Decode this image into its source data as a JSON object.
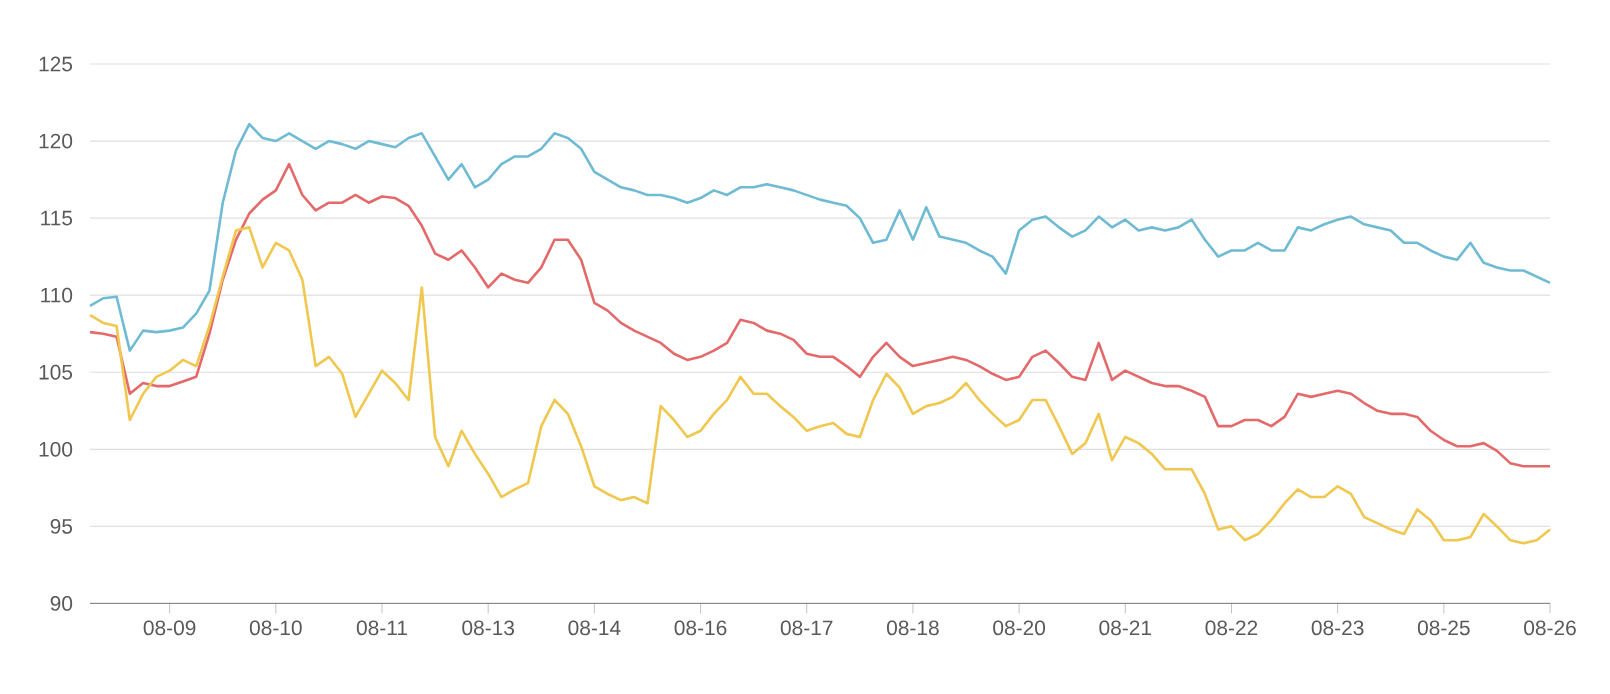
{
  "chart_data": {
    "type": "line",
    "categories": [
      null,
      null,
      null,
      null,
      null,
      null,
      "08-09",
      null,
      null,
      null,
      null,
      null,
      null,
      null,
      "08-10",
      null,
      null,
      null,
      null,
      null,
      null,
      null,
      "08-11",
      null,
      null,
      null,
      null,
      null,
      null,
      null,
      "08-13",
      null,
      null,
      null,
      null,
      null,
      null,
      null,
      "08-14",
      null,
      null,
      null,
      null,
      null,
      null,
      null,
      "08-16",
      null,
      null,
      null,
      null,
      null,
      null,
      null,
      "08-17",
      null,
      null,
      null,
      null,
      null,
      null,
      null,
      "08-18",
      null,
      null,
      null,
      null,
      null,
      null,
      null,
      "08-20",
      null,
      null,
      null,
      null,
      null,
      null,
      null,
      "08-21",
      null,
      null,
      null,
      null,
      null,
      null,
      null,
      "08-22",
      null,
      null,
      null,
      null,
      null,
      null,
      null,
      "08-23",
      null,
      null,
      null,
      null,
      null,
      null,
      null,
      "08-25",
      null,
      null,
      null,
      null,
      null,
      null,
      null,
      "08-26"
    ],
    "series": [
      {
        "color": "#6fbbd3",
        "values": [
          109.3,
          109.8,
          109.9,
          106.4,
          107.7,
          107.6,
          107.7,
          107.9,
          108.8,
          110.3,
          116,
          119.4,
          121.1,
          120.2,
          120,
          120.5,
          120,
          119.5,
          120,
          119.8,
          119.5,
          120,
          119.8,
          119.6,
          120.2,
          120.5,
          119,
          117.5,
          118.5,
          117,
          117.5,
          118.5,
          119,
          119,
          119.5,
          120.5,
          120.2,
          119.5,
          118,
          117.5,
          117,
          116.8,
          116.5,
          116.5,
          116.3,
          116,
          116.3,
          116.8,
          116.5,
          117,
          117,
          117.2,
          117,
          116.8,
          116.5,
          116.2,
          116,
          115.8,
          115,
          113.4,
          113.6,
          115.5,
          113.6,
          115.7,
          113.8,
          113.6,
          113.4,
          112.9,
          112.5,
          111.4,
          114.2,
          114.9,
          115.1,
          114.4,
          113.8,
          114.2,
          115.1,
          114.4,
          114.9,
          114.2,
          114.4,
          114.2,
          114.4,
          114.9,
          113.6,
          112.5,
          112.9,
          112.9,
          113.4,
          112.9,
          112.9,
          114.4,
          114.2,
          114.6,
          114.9,
          115.1,
          114.6,
          114.4,
          114.2,
          113.4,
          113.4,
          112.9,
          112.5,
          112.3,
          113.4,
          112.1,
          111.8,
          111.6,
          111.6,
          111.2,
          110.8
        ]
      },
      {
        "color": "#e4696a",
        "values": [
          107.6,
          107.5,
          107.3,
          103.6,
          104.3,
          104.1,
          104.1,
          104.4,
          104.7,
          107.5,
          111,
          113.6,
          115.3,
          116.2,
          116.8,
          118.5,
          116.5,
          115.5,
          116,
          116,
          116.5,
          116,
          116.4,
          116.3,
          115.8,
          114.5,
          112.7,
          112.3,
          112.9,
          111.8,
          110.5,
          111.4,
          111,
          110.8,
          111.8,
          113.6,
          113.6,
          112.3,
          109.5,
          109,
          108.2,
          107.7,
          107.3,
          106.9,
          106.2,
          105.8,
          106,
          106.4,
          106.9,
          108.4,
          108.2,
          107.7,
          107.5,
          107.1,
          106.2,
          106,
          106,
          105.4,
          104.7,
          106,
          106.9,
          106,
          105.4,
          105.6,
          105.8,
          106,
          105.8,
          105.4,
          104.9,
          104.5,
          104.7,
          106,
          106.4,
          105.6,
          104.7,
          104.5,
          106.9,
          104.5,
          105.1,
          104.7,
          104.3,
          104.1,
          104.1,
          103.8,
          103.4,
          101.5,
          101.5,
          101.9,
          101.9,
          101.5,
          102.1,
          103.6,
          103.4,
          103.6,
          103.8,
          103.6,
          103,
          102.5,
          102.3,
          102.3,
          102.1,
          101.2,
          100.6,
          100.2,
          100.2,
          100.4,
          99.9,
          99.1,
          98.9,
          98.9,
          98.9
        ]
      },
      {
        "color": "#f0c74f",
        "values": [
          108.7,
          108.2,
          108,
          101.9,
          103.6,
          104.7,
          105.1,
          105.8,
          105.4,
          108,
          111.2,
          114.2,
          114.4,
          111.8,
          113.4,
          112.9,
          111,
          105.4,
          106,
          104.9,
          102.1,
          103.6,
          105.1,
          104.3,
          103.2,
          110.5,
          100.8,
          98.9,
          101.2,
          99.7,
          98.4,
          96.9,
          97.4,
          97.8,
          101.5,
          103.2,
          102.3,
          100.2,
          97.6,
          97.1,
          96.7,
          96.9,
          96.5,
          102.8,
          101.9,
          100.8,
          101.2,
          102.3,
          103.2,
          104.7,
          103.6,
          103.6,
          102.8,
          102.1,
          101.2,
          101.5,
          101.7,
          101,
          100.8,
          103.2,
          104.9,
          104,
          102.3,
          102.8,
          103,
          103.4,
          104.3,
          103.2,
          102.3,
          101.5,
          101.9,
          103.2,
          103.2,
          101.5,
          99.7,
          100.4,
          102.3,
          99.3,
          100.8,
          100.4,
          99.7,
          98.7,
          98.7,
          98.7,
          97.1,
          94.8,
          95,
          94.1,
          94.5,
          95.4,
          96.5,
          97.4,
          96.9,
          96.9,
          97.6,
          97.1,
          95.6,
          95.2,
          94.8,
          94.5,
          96.1,
          95.4,
          94.1,
          94.1,
          94.3,
          95.8,
          95,
          94.1,
          93.9,
          94.1,
          94.8
        ]
      }
    ],
    "ylim": [
      90,
      125
    ],
    "yticks": [
      90,
      95,
      100,
      105,
      110,
      115,
      120,
      125
    ],
    "grid": "y",
    "marker": "none",
    "line_style": "solid"
  }
}
